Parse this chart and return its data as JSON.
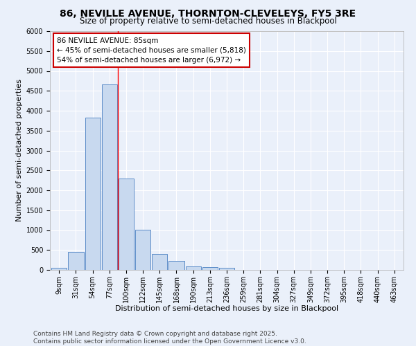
{
  "title": "86, NEVILLE AVENUE, THORNTON-CLEVELEYS, FY5 3RE",
  "subtitle": "Size of property relative to semi-detached houses in Blackpool",
  "xlabel": "Distribution of semi-detached houses by size in Blackpool",
  "ylabel": "Number of semi-detached properties",
  "bins": [
    "9sqm",
    "31sqm",
    "54sqm",
    "77sqm",
    "100sqm",
    "122sqm",
    "145sqm",
    "168sqm",
    "190sqm",
    "213sqm",
    "236sqm",
    "259sqm",
    "281sqm",
    "304sqm",
    "327sqm",
    "349sqm",
    "372sqm",
    "395sqm",
    "418sqm",
    "440sqm",
    "463sqm"
  ],
  "values": [
    50,
    450,
    3820,
    4660,
    2300,
    1010,
    400,
    225,
    95,
    70,
    55,
    0,
    0,
    0,
    0,
    0,
    0,
    0,
    0,
    0,
    0
  ],
  "bar_color": "#c8d9ef",
  "bar_edge_color": "#5b8cc8",
  "annotation_text": "86 NEVILLE AVENUE: 85sqm\n← 45% of semi-detached houses are smaller (5,818)\n54% of semi-detached houses are larger (6,972) →",
  "annotation_box_color": "#ffffff",
  "annotation_box_edge_color": "#cc0000",
  "redline_bin_index": 3,
  "footer": "Contains HM Land Registry data © Crown copyright and database right 2025.\nContains public sector information licensed under the Open Government Licence v3.0.",
  "ylim": [
    0,
    6000
  ],
  "yticks": [
    0,
    500,
    1000,
    1500,
    2000,
    2500,
    3000,
    3500,
    4000,
    4500,
    5000,
    5500,
    6000
  ],
  "background_color": "#eaf0fa",
  "grid_color": "#ffffff",
  "title_fontsize": 10,
  "subtitle_fontsize": 8.5,
  "axis_label_fontsize": 8,
  "tick_fontsize": 7,
  "annotation_fontsize": 7.5,
  "footer_fontsize": 6.5
}
